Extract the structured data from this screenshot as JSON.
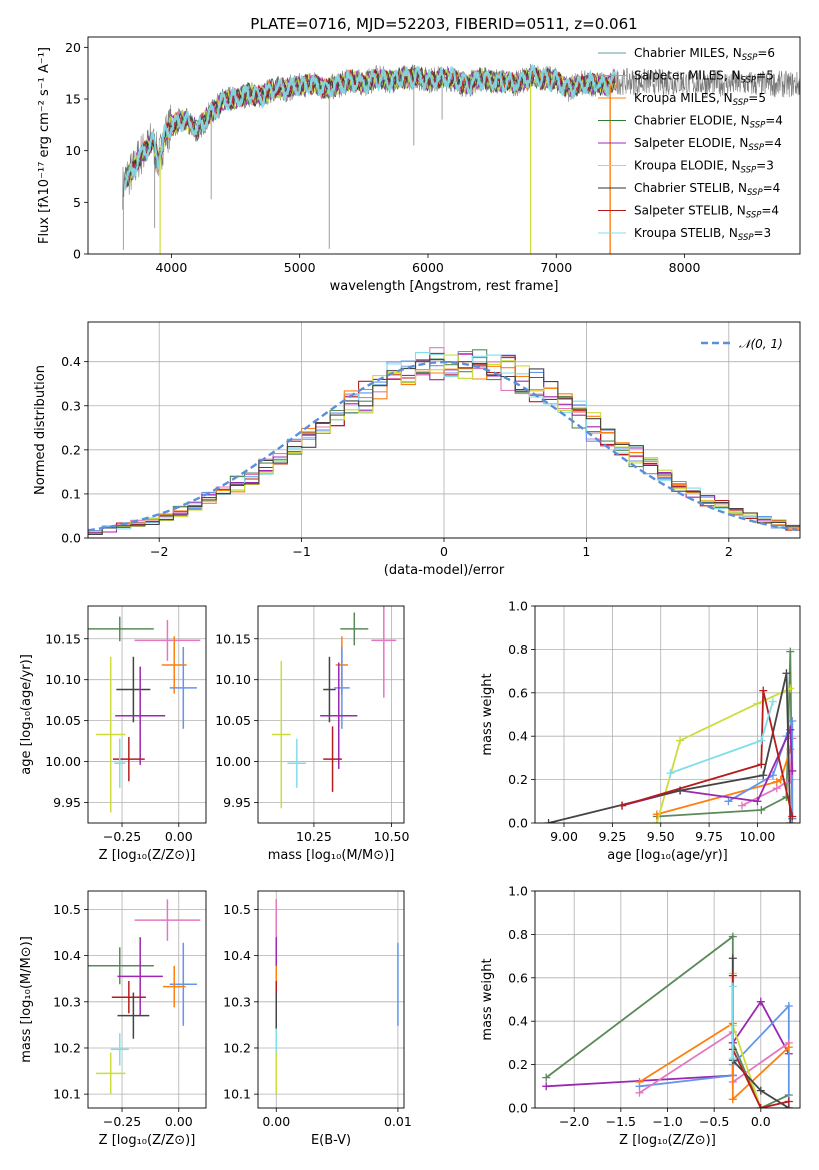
{
  "chart_data": [
    {
      "id": "spectrum",
      "type": "line",
      "title": "PLATE=0716, MJD=52203, FIBERID=0511, z=0.061",
      "xlabel": "wavelength [Angstrom, rest frame]",
      "ylabel": "Flux [fλ10⁻¹⁷ erg cm⁻² s⁻¹ A⁻¹]",
      "xlim": [
        3350,
        8900
      ],
      "ylim": [
        0,
        21
      ],
      "xticks": [
        "4000",
        "5000",
        "6000",
        "7000",
        "8000"
      ],
      "yticks": [
        "0",
        "5",
        "10",
        "15",
        "20"
      ],
      "grid": false,
      "legend_position": "right",
      "envelope": {
        "x": [
          3620,
          3650,
          3700,
          3750,
          3800,
          3850,
          3900,
          3950,
          4000,
          4100,
          4200,
          4300,
          4400,
          4500,
          4600,
          4700,
          4800,
          4900,
          5000,
          5100,
          5200,
          5300,
          5400,
          5500,
          5600,
          5700,
          5800,
          5900,
          6000,
          6100,
          6200,
          6300,
          6400,
          6500,
          6600,
          6700,
          6800,
          6900,
          7000,
          7100,
          7200,
          7300,
          7400,
          7450
        ],
        "y": [
          6.5,
          7.5,
          8.0,
          9.5,
          10.0,
          11.0,
          9.0,
          11.5,
          12.5,
          13.0,
          12.0,
          13.5,
          14.8,
          15.0,
          15.5,
          15.3,
          16.0,
          16.0,
          16.3,
          16.5,
          16.0,
          16.3,
          16.8,
          16.5,
          17.0,
          16.8,
          17.0,
          17.2,
          16.8,
          17.0,
          17.0,
          16.3,
          17.0,
          16.7,
          16.7,
          16.5,
          17.2,
          17.0,
          16.8,
          16.0,
          16.5,
          16.5,
          16.3,
          16.8
        ]
      },
      "series": [
        {
          "name": "Chabrier MILES, N_SSP=6",
          "color": "#5f9ea0"
        },
        {
          "name": "Salpeter MILES, N_SSP=5",
          "color": "#e377c2"
        },
        {
          "name": "Kroupa MILES, N_SSP=5",
          "color": "#ff7f0e"
        },
        {
          "name": "Chabrier ELODIE, N_SSP=4",
          "color": "#2e7d32"
        },
        {
          "name": "Salpeter ELODIE, N_SSP=4",
          "color": "#9c27b0"
        },
        {
          "name": "Kroupa ELODIE, N_SSP=3",
          "color": "#cddc39"
        },
        {
          "name": "Chabrier STELIB, N_SSP=4",
          "color": "#333333"
        },
        {
          "name": "Salpeter STELIB, N_SSP=4",
          "color": "#b71c1c"
        },
        {
          "name": "Kroupa STELIB, N_SSP=3",
          "color": "#80deea"
        }
      ],
      "legend_labels": [
        [
          "Chabrier MILES, N",
          "SSP",
          "=6"
        ],
        [
          "Salpeter MILES, N",
          "SSP",
          "=5"
        ],
        [
          "Kroupa MILES, N",
          "SSP",
          "=5"
        ],
        [
          "Chabrier ELODIE, N",
          "SSP",
          "=4"
        ],
        [
          "Salpeter ELODIE, N",
          "SSP",
          "=4"
        ],
        [
          "Kroupa ELODIE, N",
          "SSP",
          "=3"
        ],
        [
          "Chabrier STELIB, N",
          "SSP",
          "=4"
        ],
        [
          "Salpeter STELIB, N",
          "SSP",
          "=4"
        ],
        [
          "Kroupa STELIB, N",
          "SSP",
          "=3"
        ]
      ]
    },
    {
      "id": "residuals",
      "type": "line",
      "xlabel": "(data-model)/error",
      "ylabel": "Normed distribution",
      "xlim": [
        -2.5,
        2.5
      ],
      "ylim": [
        0,
        0.49
      ],
      "xticks": [
        -2,
        -1,
        0,
        1,
        2
      ],
      "yticks": [
        0.0,
        0.1,
        0.2,
        0.3,
        0.4
      ],
      "grid": true,
      "legend": "𝒩(0, 1)",
      "legend_position": "top-right",
      "gaussian_color": "#5b8fd9",
      "hist_colors": [
        "#e377c2",
        "#6495ed",
        "#5a8a5a",
        "#9c27b0",
        "#b71c1c",
        "#80deea",
        "#ff7f0e",
        "#cddc39",
        "#444444"
      ]
    },
    {
      "id": "age_vs_Z",
      "type": "scatter",
      "xlabel": "Z [log₁₀(Z/Z⊙)]",
      "ylabel": "age  [log₁₀(age/yr)]",
      "xlim": [
        -0.4,
        0.12
      ],
      "ylim": [
        9.925,
        10.19
      ],
      "xticks": [
        -0.25,
        0.0
      ],
      "yticks": [
        9.95,
        10.0,
        10.05,
        10.1,
        10.15
      ],
      "grid": true,
      "points": [
        {
          "x": -0.26,
          "y": 10.162,
          "xerr": 0.15,
          "yerr": 0.015,
          "color": "#5a8a5a"
        },
        {
          "x": -0.05,
          "y": 10.148,
          "xerr": 0.145,
          "yerr": 0.025,
          "color": "#e377c2"
        },
        {
          "x": -0.02,
          "y": 10.118,
          "xerr": 0.055,
          "yerr": 0.035,
          "color": "#ff7f0e"
        },
        {
          "x": 0.02,
          "y": 10.09,
          "xerr": 0.06,
          "yerr": 0.05,
          "color": "#6495ed"
        },
        {
          "x": -0.2,
          "y": 10.088,
          "xerr": 0.075,
          "yerr": 0.04,
          "color": "#444444"
        },
        {
          "x": -0.17,
          "y": 10.056,
          "xerr": 0.11,
          "yerr": 0.06,
          "color": "#9c27b0"
        },
        {
          "x": -0.3,
          "y": 10.033,
          "xerr": 0.065,
          "yerr": 0.095,
          "color": "#cddc39"
        },
        {
          "x": -0.22,
          "y": 10.003,
          "xerr": 0.07,
          "yerr": 0.027,
          "color": "#b71c1c"
        },
        {
          "x": -0.26,
          "y": 9.998,
          "xerr": 0.025,
          "yerr": 0.03,
          "color": "#80deea"
        }
      ]
    },
    {
      "id": "age_vs_mass",
      "type": "scatter",
      "xlabel": "mass [log₁₀(M/M⊙)]",
      "ylabel": "",
      "xlim": [
        10.07,
        10.54
      ],
      "ylim": [
        9.925,
        10.19
      ],
      "xticks": [
        10.25,
        10.5
      ],
      "yticks": [
        9.95,
        10.0,
        10.05,
        10.1,
        10.15
      ],
      "grid": true,
      "points": [
        {
          "x": 10.38,
          "y": 10.162,
          "xerr": 0.045,
          "yerr": 0.02,
          "color": "#5a8a5a"
        },
        {
          "x": 10.475,
          "y": 10.148,
          "xerr": 0.04,
          "yerr": 0.07,
          "color": "#e377c2"
        },
        {
          "x": 10.34,
          "y": 10.118,
          "xerr": 0.02,
          "yerr": 0.035,
          "color": "#ff7f0e"
        },
        {
          "x": 10.34,
          "y": 10.09,
          "xerr": 0.025,
          "yerr": 0.05,
          "color": "#6495ed"
        },
        {
          "x": 10.3,
          "y": 10.088,
          "xerr": 0.02,
          "yerr": 0.04,
          "color": "#444444"
        },
        {
          "x": 10.33,
          "y": 10.056,
          "xerr": 0.06,
          "yerr": 0.065,
          "color": "#9c27b0"
        },
        {
          "x": 10.145,
          "y": 10.033,
          "xerr": 0.03,
          "yerr": 0.09,
          "color": "#cddc39"
        },
        {
          "x": 10.31,
          "y": 10.003,
          "xerr": 0.03,
          "yerr": 0.04,
          "color": "#b71c1c"
        },
        {
          "x": 10.195,
          "y": 9.998,
          "xerr": 0.03,
          "yerr": 0.03,
          "color": "#80deea"
        }
      ]
    },
    {
      "id": "mass_weight_vs_age",
      "type": "line",
      "xlabel": "age  [log₁₀(age/yr)]",
      "ylabel": "mass weight",
      "xlim": [
        8.85,
        10.22
      ],
      "ylim": [
        0,
        1.0
      ],
      "xticks": [
        9.0,
        9.25,
        9.5,
        9.75,
        10.0
      ],
      "yticks": [
        0.0,
        0.2,
        0.4,
        0.6,
        0.8,
        1.0
      ],
      "grid": true,
      "series": [
        {
          "color": "#5a8a5a",
          "x": [
            9.48,
            10.02,
            10.15,
            10.17,
            10.18
          ],
          "y": [
            0.03,
            0.06,
            0.12,
            0.79,
            0.02
          ]
        },
        {
          "color": "#e377c2",
          "x": [
            9.92,
            10.1,
            10.17,
            10.18
          ],
          "y": [
            0.08,
            0.16,
            0.2,
            0.39
          ]
        },
        {
          "color": "#ff7f0e",
          "x": [
            9.48,
            10.1,
            10.12,
            10.17
          ],
          "y": [
            0.04,
            0.19,
            0.2,
            0.34
          ]
        },
        {
          "color": "#6495ed",
          "x": [
            9.85,
            10.08,
            10.15,
            10.18,
            10.18
          ],
          "y": [
            0.1,
            0.22,
            0.4,
            0.47,
            0.02
          ]
        },
        {
          "color": "#9c27b0",
          "x": [
            9.3,
            9.6,
            10.0,
            10.17,
            10.18
          ],
          "y": [
            0.08,
            0.15,
            0.1,
            0.43,
            0.24
          ]
        },
        {
          "color": "#cddc39",
          "x": [
            9.48,
            9.6,
            10.0,
            10.17
          ],
          "y": [
            0.0,
            0.38,
            0.55,
            0.62
          ]
        },
        {
          "color": "#444444",
          "x": [
            8.92,
            9.6,
            10.03,
            10.15,
            10.17
          ],
          "y": [
            0.0,
            0.15,
            0.22,
            0.69,
            0.0
          ]
        },
        {
          "color": "#b71c1c",
          "x": [
            9.3,
            10.02,
            10.03,
            10.18
          ],
          "y": [
            0.08,
            0.27,
            0.61,
            0.03
          ]
        },
        {
          "color": "#80deea",
          "x": [
            9.55,
            10.02,
            10.08
          ],
          "y": [
            0.23,
            0.38,
            0.56
          ]
        }
      ]
    },
    {
      "id": "mass_vs_Z",
      "type": "scatter",
      "xlabel": "Z [log₁₀(Z/Z⊙)]",
      "ylabel": "mass [log₁₀(M/M⊙)]",
      "xlim": [
        -0.4,
        0.12
      ],
      "ylim": [
        10.07,
        10.54
      ],
      "xticks": [
        -0.25,
        0.0
      ],
      "yticks": [
        10.1,
        10.2,
        10.3,
        10.4,
        10.5
      ],
      "grid": true,
      "points": [
        {
          "x": -0.05,
          "y": 10.477,
          "xerr": 0.145,
          "yerr": 0.045,
          "color": "#e377c2"
        },
        {
          "x": -0.26,
          "y": 10.378,
          "xerr": 0.15,
          "yerr": 0.04,
          "color": "#5a8a5a"
        },
        {
          "x": -0.17,
          "y": 10.355,
          "xerr": 0.1,
          "yerr": 0.085,
          "color": "#9c27b0"
        },
        {
          "x": 0.02,
          "y": 10.338,
          "xerr": 0.06,
          "yerr": 0.09,
          "color": "#6495ed"
        },
        {
          "x": -0.02,
          "y": 10.333,
          "xerr": 0.05,
          "yerr": 0.045,
          "color": "#ff7f0e"
        },
        {
          "x": -0.22,
          "y": 10.31,
          "xerr": 0.075,
          "yerr": 0.035,
          "color": "#b71c1c"
        },
        {
          "x": -0.2,
          "y": 10.27,
          "xerr": 0.07,
          "yerr": 0.05,
          "color": "#444444"
        },
        {
          "x": -0.26,
          "y": 10.197,
          "xerr": 0.04,
          "yerr": 0.035,
          "color": "#80deea"
        },
        {
          "x": -0.3,
          "y": 10.145,
          "xerr": 0.065,
          "yerr": 0.045,
          "color": "#cddc39"
        }
      ]
    },
    {
      "id": "mass_vs_ebv",
      "type": "scatter",
      "xlabel": "E(B-V)",
      "ylabel": "",
      "xlim": [
        -0.0015,
        0.0105
      ],
      "ylim": [
        10.07,
        10.54
      ],
      "xticks": [
        0.0,
        0.01
      ],
      "yticks": [
        10.1,
        10.2,
        10.3,
        10.4,
        10.5
      ],
      "grid": true,
      "points": [
        {
          "x": 0.0,
          "y": 10.477,
          "xerr": 0,
          "yerr": 0.045,
          "color": "#e377c2"
        },
        {
          "x": 0.0,
          "y": 10.378,
          "xerr": 0,
          "yerr": 0.04,
          "color": "#5a8a5a"
        },
        {
          "x": 0.0,
          "y": 10.355,
          "xerr": 0,
          "yerr": 0.085,
          "color": "#9c27b0"
        },
        {
          "x": 0.01,
          "y": 10.338,
          "xerr": 0,
          "yerr": 0.09,
          "color": "#6495ed"
        },
        {
          "x": 0.0,
          "y": 10.333,
          "xerr": 0,
          "yerr": 0.045,
          "color": "#ff7f0e"
        },
        {
          "x": 0.0,
          "y": 10.31,
          "xerr": 0,
          "yerr": 0.035,
          "color": "#b71c1c"
        },
        {
          "x": 0.0,
          "y": 10.27,
          "xerr": 0,
          "yerr": 0.05,
          "color": "#444444"
        },
        {
          "x": 0.0,
          "y": 10.197,
          "xerr": 0,
          "yerr": 0.045,
          "color": "#80deea"
        },
        {
          "x": 0.0,
          "y": 10.145,
          "xerr": 0,
          "yerr": 0.045,
          "color": "#cddc39"
        }
      ]
    },
    {
      "id": "mass_weight_vs_Z",
      "type": "line",
      "xlabel": "Z [log₁₀(Z/Z⊙)]",
      "ylabel": "mass weight",
      "xlim": [
        -2.42,
        0.42
      ],
      "ylim": [
        0,
        1.0
      ],
      "xticks": [
        -2.0,
        -1.5,
        -1.0,
        -0.5,
        0.0
      ],
      "yticks": [
        0.0,
        0.2,
        0.4,
        0.6,
        0.8,
        1.0
      ],
      "grid": true,
      "series": [
        {
          "color": "#5a8a5a",
          "x": [
            -2.3,
            -0.3,
            -0.3,
            0.0,
            0.3
          ],
          "y": [
            0.14,
            0.79,
            0.3,
            0.0,
            0.06
          ]
        },
        {
          "color": "#9c27b0",
          "x": [
            -2.3,
            -0.3,
            -0.3,
            0.0,
            0.3
          ],
          "y": [
            0.1,
            0.15,
            0.3,
            0.49,
            0.25
          ]
        },
        {
          "color": "#6495ed",
          "x": [
            -1.3,
            -0.3,
            -0.3,
            0.3,
            0.3
          ],
          "y": [
            0.1,
            0.15,
            0.2,
            0.47,
            0.0
          ]
        },
        {
          "color": "#e377c2",
          "x": [
            -1.3,
            -0.3,
            -0.3,
            0.3
          ],
          "y": [
            0.07,
            0.35,
            0.12,
            0.3
          ]
        },
        {
          "color": "#ff7f0e",
          "x": [
            -1.3,
            -0.3,
            -0.3,
            0.3
          ],
          "y": [
            0.12,
            0.39,
            0.04,
            0.28
          ]
        },
        {
          "color": "#cddc39",
          "x": [
            -0.3,
            -0.3,
            0.0,
            0.3
          ],
          "y": [
            0.62,
            0.38,
            0.0,
            0.0
          ]
        },
        {
          "color": "#444444",
          "x": [
            -0.3,
            -0.3,
            0.0,
            0.3
          ],
          "y": [
            0.69,
            0.22,
            0.08,
            0.0
          ]
        },
        {
          "color": "#b71c1c",
          "x": [
            -0.3,
            -0.3,
            0.0,
            0.3
          ],
          "y": [
            0.61,
            0.27,
            0.0,
            0.03
          ]
        },
        {
          "color": "#80deea",
          "x": [
            -0.3,
            -0.3
          ],
          "y": [
            0.56,
            0.23
          ]
        }
      ]
    }
  ]
}
